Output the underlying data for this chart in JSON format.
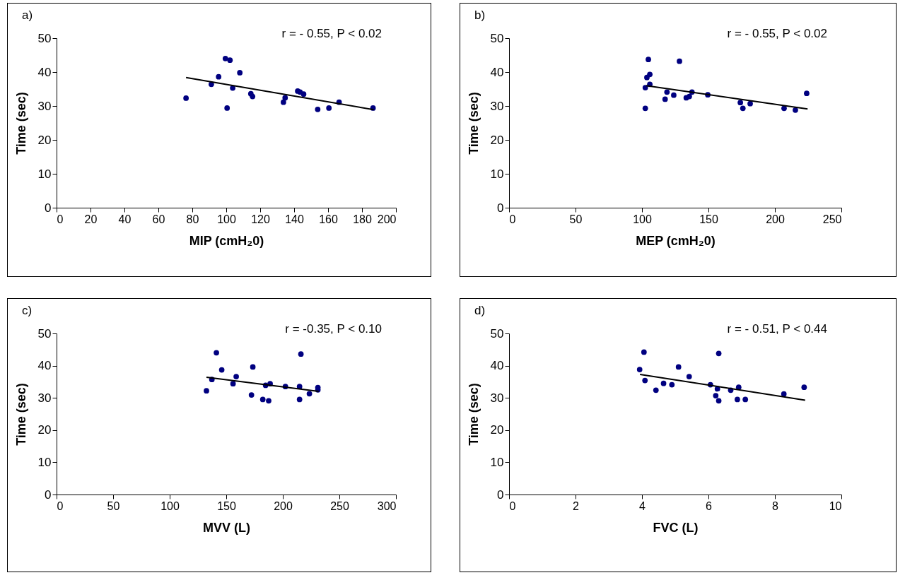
{
  "chart_data": [
    {
      "type": "scatter",
      "title": "a)",
      "xlabel": "MIP (cmH₂0)",
      "ylabel": "Time (sec)",
      "annotations": [
        "r = - 0.55, P < 0.02"
      ],
      "marker": "circle",
      "xlim": [
        0,
        200
      ],
      "xticks": [
        0,
        20,
        40,
        60,
        80,
        100,
        120,
        140,
        160,
        180,
        200
      ],
      "ylim": [
        0,
        50
      ],
      "yticks": [
        0,
        10,
        20,
        30,
        40,
        50
      ],
      "series": [
        {
          "color": "#000080",
          "x": [
            76.3,
            91.2,
            95.5,
            99.5,
            102.2,
            100.5,
            103.8,
            108,
            114.5,
            115.5,
            133.7,
            134.7,
            142.1,
            143.5,
            145.6,
            153.9,
            160.5,
            166.5,
            186.5
          ],
          "values": [
            32.3,
            36.4,
            38.6,
            44.0,
            43.5,
            29.4,
            35.3,
            39.8,
            33.6,
            32.8,
            31.1,
            32.4,
            34.4,
            34.1,
            33.5,
            29.0,
            29.4,
            31.1,
            29.4
          ]
        },
        {
          "type": "line",
          "marker": "none",
          "color": "#000000",
          "x": [
            76.3,
            186.9
          ],
          "values": [
            38.4,
            28.9
          ]
        }
      ]
    },
    {
      "type": "scatter",
      "title": "b)",
      "xlabel": "MEP (cmH₂0)",
      "ylabel": "Time (sec)",
      "annotations": [
        "r = - 0.55, P < 0.02"
      ],
      "marker": "circle",
      "xlim": [
        0,
        250
      ],
      "xticks": [
        0,
        50,
        100,
        150,
        200,
        250
      ],
      "ylim": [
        0,
        50
      ],
      "yticks": [
        0,
        10,
        20,
        30,
        40,
        50
      ],
      "series": [
        {
          "color": "#000080",
          "x": [
            102.5,
            102.5,
            103.7,
            104.8,
            105.9,
            105.9,
            117.4,
            118.8,
            123.9,
            128.2,
            133.3,
            135.6,
            137.6,
            149.5,
            174,
            175.9,
            181.4,
            206.9,
            215.4,
            223.9
          ],
          "values": [
            29.3,
            35.4,
            38.4,
            43.7,
            39.3,
            36.4,
            32.0,
            34.1,
            33.2,
            43.2,
            32.4,
            32.8,
            34.1,
            33.3,
            31.0,
            29.3,
            30.7,
            29.3,
            28.8,
            33.7
          ]
        },
        {
          "type": "line",
          "marker": "none",
          "color": "#000000",
          "x": [
            103.2,
            224.6
          ],
          "values": [
            36.0,
            29.1
          ]
        }
      ]
    },
    {
      "type": "scatter",
      "title": "c)",
      "xlabel": "MVV (L)",
      "ylabel": "Time (sec)",
      "annotations": [
        "r = -0.35, P < 0.10"
      ],
      "marker": "circle",
      "xlim": [
        0,
        300
      ],
      "xticks": [
        0,
        50,
        100,
        150,
        200,
        250,
        300
      ],
      "ylim": [
        0,
        50
      ],
      "yticks": [
        0,
        10,
        20,
        30,
        40,
        50
      ],
      "series": [
        {
          "color": "#000080",
          "x": [
            132.5,
            137.3,
            141.3,
            146.0,
            156.0,
            158.8,
            172.3,
            173.5,
            182.3,
            184.8,
            187.5,
            188.8,
            202.3,
            214.8,
            214.8,
            216,
            223.5,
            231,
            231
          ],
          "values": [
            32.2,
            35.7,
            44.0,
            38.7,
            34.4,
            36.6,
            30.9,
            39.6,
            29.5,
            33.9,
            29.1,
            34.4,
            33.5,
            33.5,
            29.5,
            43.6,
            31.3,
            33.2,
            32.5
          ]
        },
        {
          "type": "line",
          "marker": "none",
          "color": "#000000",
          "x": [
            132.5,
            231.7
          ],
          "values": [
            36.4,
            32.0
          ]
        }
      ]
    },
    {
      "type": "scatter",
      "title": "d)",
      "xlabel": "FVC (L)",
      "ylabel": "Time (sec)",
      "annotations": [
        "r = - 0.51, P < 0.44"
      ],
      "marker": "circle",
      "xlim": [
        0,
        10
      ],
      "xticks": [
        0,
        2,
        4,
        6,
        8,
        10
      ],
      "ylim": [
        0,
        50
      ],
      "yticks": [
        0,
        10,
        20,
        30,
        40,
        50
      ],
      "series": [
        {
          "color": "#000080",
          "x": [
            3.93,
            4.06,
            4.09,
            4.42,
            4.65,
            4.9,
            5.1,
            5.42,
            6.06,
            6.22,
            6.27,
            6.31,
            6.31,
            6.67,
            6.87,
            6.91,
            7.11,
            8.27,
            8.88
          ],
          "values": [
            38.8,
            44.2,
            35.4,
            32.4,
            34.5,
            34.1,
            39.6,
            36.6,
            34.1,
            30.7,
            32.8,
            43.8,
            29.1,
            32.4,
            29.5,
            33.3,
            29.5,
            31.2,
            33.3
          ]
        },
        {
          "type": "line",
          "marker": "none",
          "color": "#000000",
          "x": [
            3.94,
            8.91
          ],
          "values": [
            37.3,
            29.3
          ]
        }
      ]
    }
  ]
}
